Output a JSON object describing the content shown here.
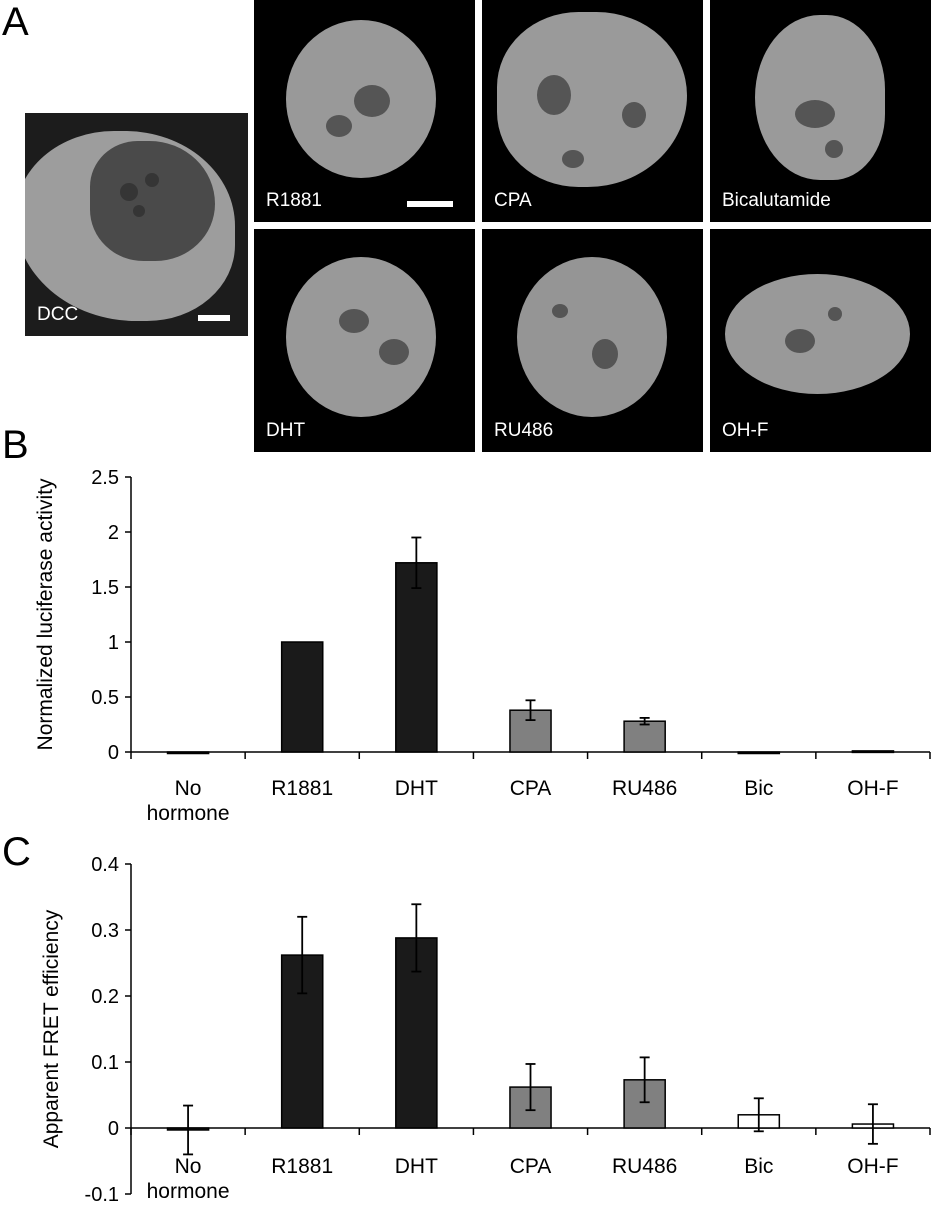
{
  "panels": {
    "a": "A",
    "b": "B",
    "c": "C"
  },
  "micrographs": [
    {
      "label": "DCC"
    },
    {
      "label": "R1881"
    },
    {
      "label": "CPA"
    },
    {
      "label": "Bicalutamide"
    },
    {
      "label": "DHT"
    },
    {
      "label": "RU486"
    },
    {
      "label": "OH-F"
    }
  ],
  "colors": {
    "agonist": "#1a1a1a",
    "partial": "#808080",
    "antagonist": "#ffffff",
    "image_bg": "#000000",
    "nucleus": "#9a9a9a"
  },
  "chart_data": [
    {
      "type": "bar",
      "title": "",
      "xlabel": "",
      "ylabel": "Normalized luciferase activity",
      "ylim": [
        0,
        2.5
      ],
      "yticks": [
        "2.5",
        "2",
        "1.5",
        "1",
        "0.5",
        "0"
      ],
      "categories": [
        "No hormone",
        "R1881",
        "DHT",
        "CPA",
        "RU486",
        "Bic",
        "OH-F"
      ],
      "category_lines": [
        [
          "No",
          "hormone"
        ],
        [
          "R1881"
        ],
        [
          "DHT"
        ],
        [
          "CPA"
        ],
        [
          "RU486"
        ],
        [
          "Bic"
        ],
        [
          "OH-F"
        ]
      ],
      "values": [
        0,
        1.0,
        1.72,
        0.38,
        0.28,
        0,
        0.01
      ],
      "errors": [
        0,
        0,
        0.23,
        0.09,
        0.03,
        0,
        0
      ],
      "fills": [
        "#1a1a1a",
        "#1a1a1a",
        "#1a1a1a",
        "#808080",
        "#808080",
        "#ffffff",
        "#ffffff"
      ],
      "grid": false
    },
    {
      "type": "bar",
      "title": "",
      "xlabel": "",
      "ylabel": "Apparent FRET efficiency",
      "ylim": [
        -0.1,
        0.4
      ],
      "yticks": [
        "0.4",
        "0.3",
        "0.2",
        "0.1",
        "0",
        "-0.1"
      ],
      "categories": [
        "No hormone",
        "R1881",
        "DHT",
        "CPA",
        "RU486",
        "Bic",
        "OH-F"
      ],
      "category_lines": [
        [
          "No",
          "hormone"
        ],
        [
          "R1881"
        ],
        [
          "DHT"
        ],
        [
          "CPA"
        ],
        [
          "RU486"
        ],
        [
          "Bic"
        ],
        [
          "OH-F"
        ]
      ],
      "values": [
        -0.003,
        0.262,
        0.288,
        0.062,
        0.073,
        0.02,
        0.006
      ],
      "errors": [
        0.037,
        0.058,
        0.051,
        0.035,
        0.034,
        0.025,
        0.03
      ],
      "fills": [
        "#1a1a1a",
        "#1a1a1a",
        "#1a1a1a",
        "#808080",
        "#808080",
        "#ffffff",
        "#ffffff"
      ],
      "grid": false
    }
  ]
}
